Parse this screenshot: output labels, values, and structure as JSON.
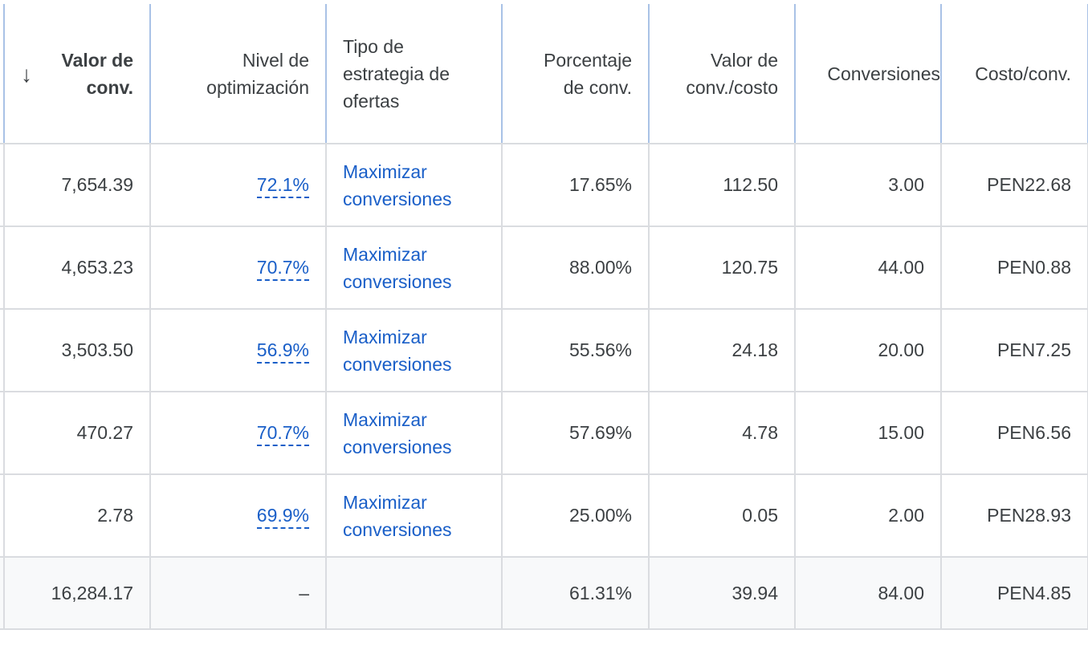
{
  "table": {
    "columns": [
      "Valor de conv.",
      "Nivel de optimización",
      "Tipo de estrategia de ofertas",
      "Porcentaje de conv.",
      "Valor de conv./costo",
      "Conversiones",
      "Costo/conv."
    ],
    "rows": [
      [
        "7,654.39",
        "72.1%",
        "Maximizar conversiones",
        "17.65%",
        "112.50",
        "3.00",
        "PEN22.68"
      ],
      [
        "4,653.23",
        "70.7%",
        "Maximizar conversiones",
        "88.00%",
        "120.75",
        "44.00",
        "PEN0.88"
      ],
      [
        "3,503.50",
        "56.9%",
        "Maximizar conversiones",
        "55.56%",
        "24.18",
        "20.00",
        "PEN7.25"
      ],
      [
        "470.27",
        "70.7%",
        "Maximizar conversiones",
        "57.69%",
        "4.78",
        "15.00",
        "PEN6.56"
      ],
      [
        "2.78",
        "69.9%",
        "Maximizar conversiones",
        "25.00%",
        "0.05",
        "2.00",
        "PEN28.93"
      ]
    ],
    "total": {
      "conv_value": "16,284.17",
      "optimization": "–",
      "conv_rate": "61.31%",
      "roas": "39.94",
      "conversions": "84.00",
      "cost_per_conv": "PEN4.85"
    }
  }
}
